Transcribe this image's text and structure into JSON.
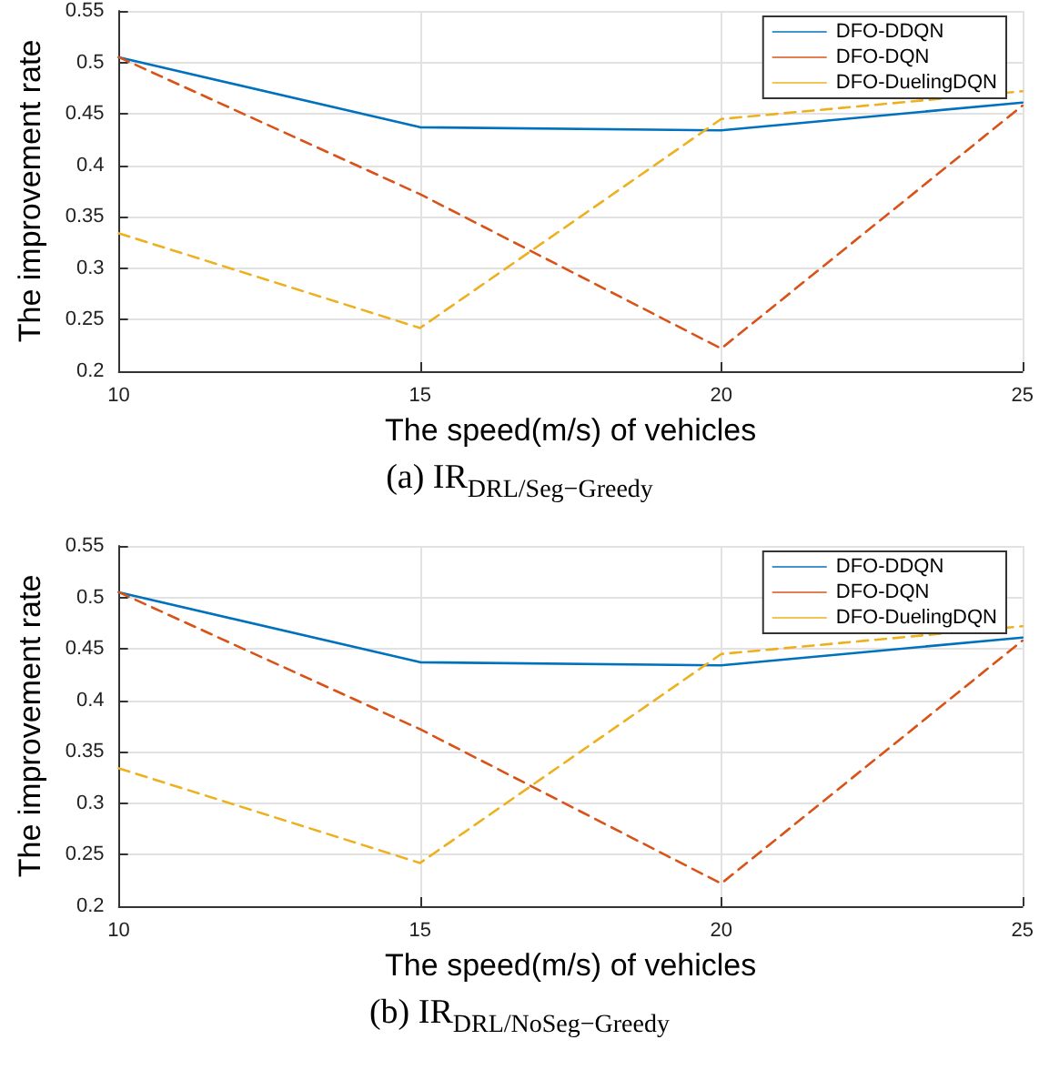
{
  "chart_data": [
    {
      "type": "line",
      "xlabel": "The speed(m/s) of vehicles",
      "ylabel": "The improvement rate",
      "annotations": [
        "(a) IR$_{DRL/Seg−Greedy}$"
      ],
      "x": [
        10,
        15,
        20,
        25
      ],
      "xlim": [
        10,
        25
      ],
      "xticks": [
        10,
        15,
        20,
        25
      ],
      "ylim": [
        0.2,
        0.55
      ],
      "yticks": [
        0.2,
        0.25,
        0.3,
        0.35,
        0.4,
        0.45,
        0.5,
        0.55
      ],
      "grid": true,
      "legend": "top right",
      "marker": "none",
      "series": [
        {
          "name": "DFO-DDQN",
          "color": "#0072bd",
          "line_style": "solid",
          "values": [
            0.505,
            0.437,
            0.434,
            0.461
          ]
        },
        {
          "name": "DFO-DQN",
          "color": "#d95319",
          "line_style": "dashed",
          "values": [
            0.505,
            0.372,
            0.222,
            0.458
          ]
        },
        {
          "name": "DFO-DuelingDQN",
          "color": "#edb120",
          "line_style": "dashed",
          "values": [
            0.334,
            0.242,
            0.445,
            0.472
          ]
        }
      ]
    },
    {
      "type": "line",
      "xlabel": "The speed(m/s) of vehicles",
      "ylabel": "The improvement rate",
      "annotations": [
        "(b) IR$_{DRL/NoSeg−Greedy}$"
      ],
      "x": [
        10,
        15,
        20,
        25
      ],
      "xlim": [
        10,
        25
      ],
      "xticks": [
        10,
        15,
        20,
        25
      ],
      "ylim": [
        0.2,
        0.55
      ],
      "yticks": [
        0.2,
        0.25,
        0.3,
        0.35,
        0.4,
        0.45,
        0.5,
        0.55
      ],
      "grid": true,
      "legend": "top right",
      "marker": "none",
      "series": [
        {
          "name": "DFO-DDQN",
          "color": "#0072bd",
          "line_style": "solid",
          "values": [
            0.505,
            0.437,
            0.434,
            0.461
          ]
        },
        {
          "name": "DFO-DQN",
          "color": "#d95319",
          "line_style": "dashed",
          "values": [
            0.505,
            0.372,
            0.222,
            0.458
          ]
        },
        {
          "name": "DFO-DuelingDQN",
          "color": "#edb120",
          "line_style": "dashed",
          "values": [
            0.334,
            0.242,
            0.445,
            0.472
          ]
        }
      ]
    }
  ]
}
